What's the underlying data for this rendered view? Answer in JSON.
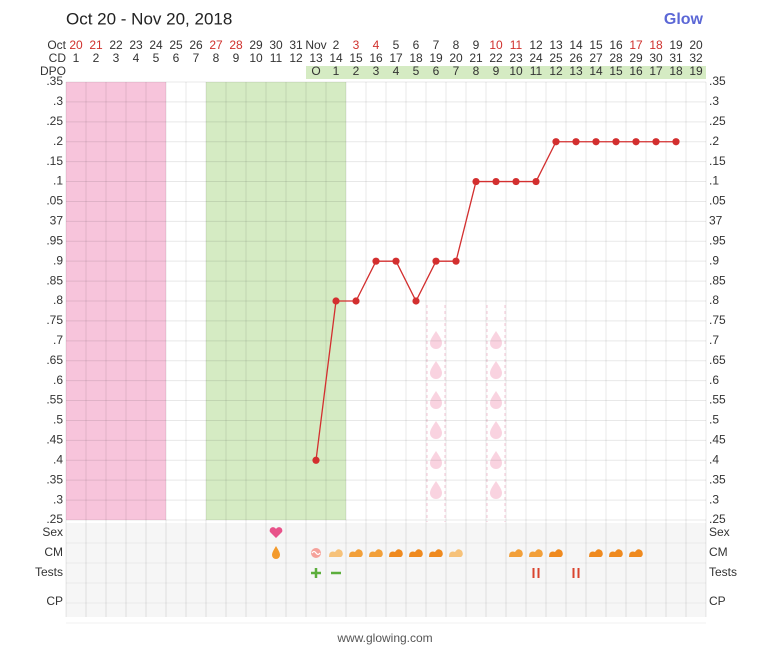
{
  "chart_data": {
    "type": "line",
    "title": "Oct 20 - Nov 20, 2018",
    "logo": "Glow",
    "footer": "www.glowing.com",
    "row_labels": {
      "date": "Oct",
      "cd": "CD",
      "dpo": "DPO"
    },
    "categories": [
      "20",
      "21",
      "22",
      "23",
      "24",
      "25",
      "26",
      "27",
      "28",
      "29",
      "30",
      "31",
      "Nov",
      "2",
      "3",
      "4",
      "5",
      "6",
      "7",
      "8",
      "9",
      "10",
      "11",
      "12",
      "13",
      "14",
      "15",
      "16",
      "17",
      "18",
      "19",
      "20"
    ],
    "date_colors": [
      "#d0312d",
      "#d0312d",
      "#333333",
      "#333333",
      "#333333",
      "#333333",
      "#333333",
      "#d0312d",
      "#d0312d",
      "#333333",
      "#333333",
      "#333333",
      "#333333",
      "#333333",
      "#d0312d",
      "#d0312d",
      "#333333",
      "#333333",
      "#333333",
      "#333333",
      "#333333",
      "#d0312d",
      "#d0312d",
      "#333333",
      "#333333",
      "#333333",
      "#333333",
      "#333333",
      "#d0312d",
      "#d0312d",
      "#333333",
      "#333333"
    ],
    "cd": [
      1,
      2,
      3,
      4,
      5,
      6,
      7,
      8,
      9,
      10,
      11,
      12,
      13,
      14,
      15,
      16,
      17,
      18,
      19,
      20,
      21,
      22,
      23,
      24,
      25,
      26,
      27,
      28,
      29,
      30,
      31,
      32
    ],
    "dpo": [
      null,
      null,
      null,
      null,
      null,
      null,
      null,
      null,
      null,
      null,
      null,
      null,
      "O",
      1,
      2,
      3,
      4,
      5,
      6,
      7,
      8,
      9,
      10,
      11,
      12,
      13,
      14,
      15,
      16,
      17,
      18,
      19
    ],
    "values": [
      null,
      null,
      null,
      null,
      null,
      null,
      null,
      null,
      null,
      null,
      null,
      null,
      36.4,
      36.8,
      36.8,
      36.9,
      36.9,
      36.8,
      36.9,
      36.9,
      37.1,
      37.1,
      37.1,
      37.1,
      37.2,
      37.2,
      37.2,
      37.2,
      37.2,
      37.2,
      37.2,
      null
    ],
    "color": "#d32f2f",
    "ylim": [
      36.25,
      37.35
    ],
    "yticks": [
      {
        "value": 37.35,
        "label": ".35"
      },
      {
        "value": 37.3,
        "label": ".3"
      },
      {
        "value": 37.25,
        "label": ".25"
      },
      {
        "value": 37.2,
        "label": ".2"
      },
      {
        "value": 37.15,
        "label": ".15"
      },
      {
        "value": 37.1,
        "label": ".1"
      },
      {
        "value": 37.05,
        "label": ".05"
      },
      37,
      {
        "value": 36.95,
        "label": ".95"
      },
      {
        "value": 36.9,
        "label": ".9"
      },
      {
        "value": 36.85,
        "label": ".85"
      },
      {
        "value": 36.8,
        "label": ".8"
      },
      {
        "value": 36.75,
        "label": ".75"
      },
      {
        "value": 36.7,
        "label": ".7"
      },
      {
        "value": 36.65,
        "label": ".65"
      },
      {
        "value": 36.6,
        "label": ".6"
      },
      {
        "value": 36.55,
        "label": ".55"
      },
      {
        "value": 36.5,
        "label": ".5"
      },
      {
        "value": 36.45,
        "label": ".45"
      },
      {
        "value": 36.4,
        "label": ".4"
      },
      {
        "value": 36.35,
        "label": ".35"
      },
      {
        "value": 36.3,
        "label": ".3"
      },
      {
        "value": 36.25,
        "label": ".25"
      }
    ],
    "grid": true,
    "side_rows": [
      "Sex",
      "CM",
      "Tests",
      "CP"
    ]
  }
}
